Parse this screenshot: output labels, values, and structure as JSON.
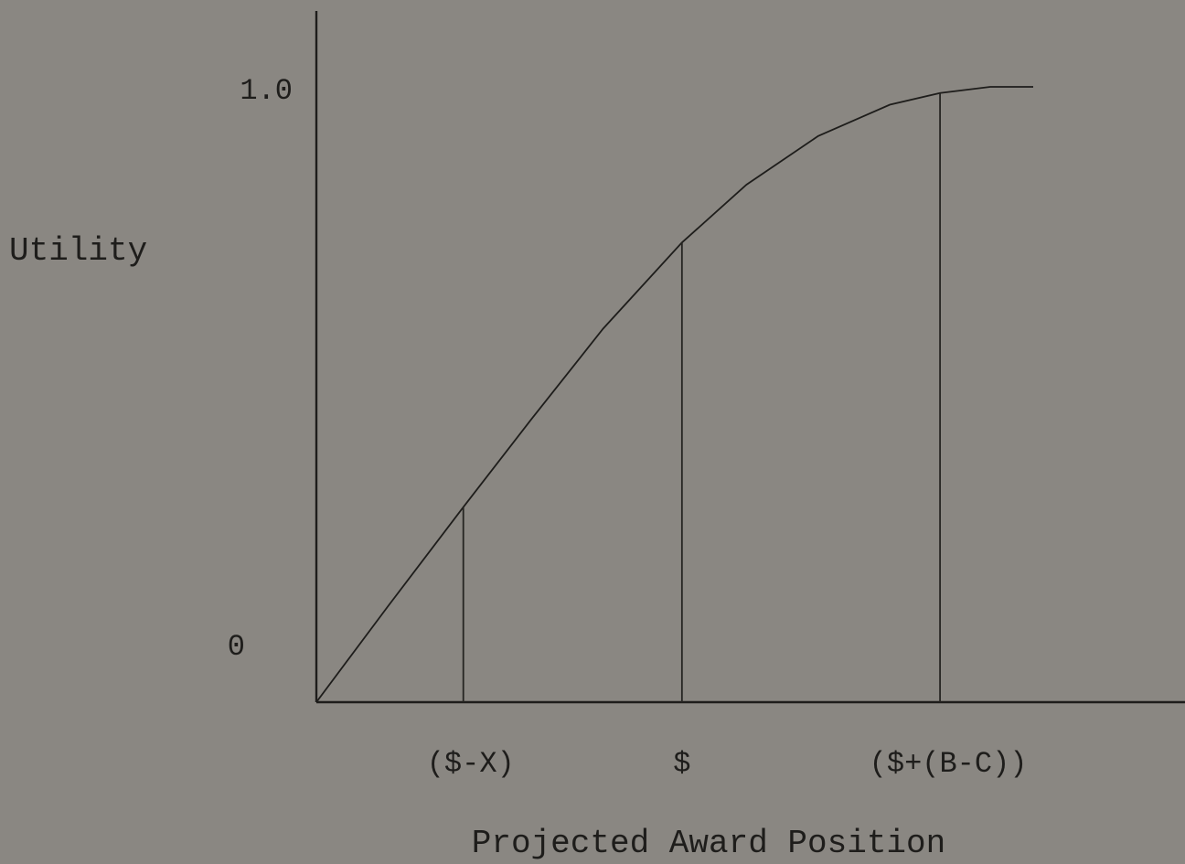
{
  "chart_data": {
    "type": "line",
    "xlabel": "Projected Award Position",
    "ylabel": "Utility",
    "ylim": [
      0,
      1
    ],
    "y_ticks": [
      {
        "value": 1.0,
        "label": "1.0"
      },
      {
        "value": 0,
        "label": "0"
      }
    ],
    "x_ticks": [
      {
        "value": 0.205,
        "label": "($-X)"
      },
      {
        "value": 0.51,
        "label": "$"
      },
      {
        "value": 0.87,
        "label": "($+(B-C))"
      }
    ],
    "curve": {
      "x": [
        0.0,
        0.1,
        0.205,
        0.3,
        0.4,
        0.51,
        0.6,
        0.7,
        0.8,
        0.87,
        0.94,
        1.0
      ],
      "y": [
        0.0,
        0.156,
        0.317,
        0.46,
        0.607,
        0.747,
        0.841,
        0.92,
        0.971,
        0.99,
        1.0,
        1.0
      ]
    },
    "markers": [
      {
        "x": 0.205,
        "y": 0.317
      },
      {
        "x": 0.51,
        "y": 0.747
      },
      {
        "x": 0.87,
        "y": 0.99
      }
    ],
    "grid": false
  }
}
